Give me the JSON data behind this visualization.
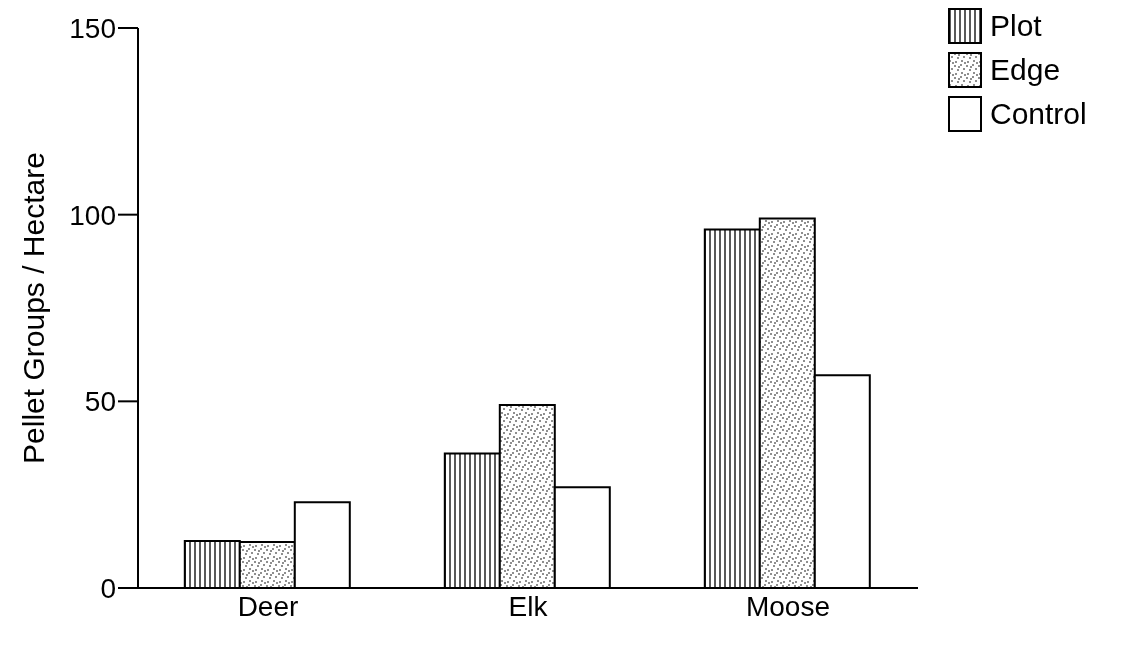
{
  "chart_data": {
    "type": "bar",
    "ylabel": "Pellet Groups / Hectare",
    "categories": [
      "Deer",
      "Elk",
      "Moose"
    ],
    "series": [
      {
        "name": "Plot",
        "color": "#000000",
        "values": [
          12.6,
          36,
          96
        ]
      },
      {
        "name": "Edge",
        "color": "#000000",
        "values": [
          12.3,
          49,
          99
        ]
      },
      {
        "name": "Control",
        "color": "#ffffff",
        "values": [
          23,
          27,
          57
        ]
      }
    ],
    "ylim": [
      0,
      150
    ],
    "yticks": [
      0,
      50,
      100,
      150
    ],
    "grid": false,
    "legend": "top right"
  }
}
